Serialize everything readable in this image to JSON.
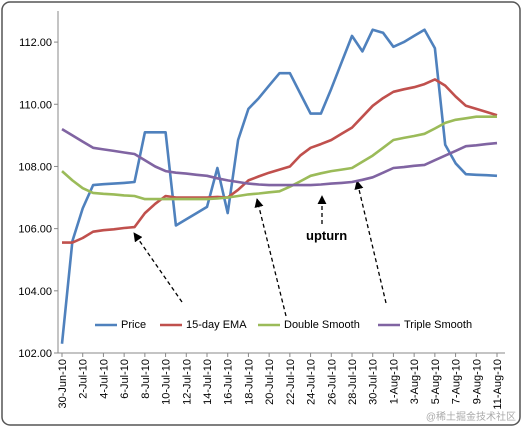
{
  "chart_data": {
    "type": "line",
    "categories": [
      "30-Jun-10",
      null,
      "2-Jul-10",
      null,
      "4-Jul-10",
      null,
      "6-Jul-10",
      null,
      "8-Jul-10",
      null,
      "10-Jul-10",
      null,
      "12-Jul-10",
      null,
      "14-Jul-10",
      null,
      "16-Jul-10",
      null,
      "18-Jul-10",
      null,
      "20-Jul-10",
      null,
      "22-Jul-10",
      null,
      "24-Jul-10",
      null,
      "26-Jul-10",
      null,
      "28-Jul-10",
      null,
      "30-Jul-10",
      null,
      "1-Aug-10",
      null,
      "3-Aug-10",
      null,
      "5-Aug-10",
      null,
      "7-Aug-10",
      null,
      "9-Aug-10",
      null,
      "11-Aug-10"
    ],
    "series": [
      {
        "name": "Price",
        "color": "#4f81bd",
        "values": [
          102.3,
          105.6,
          106.65,
          107.4,
          107.43,
          107.45,
          107.47,
          107.5,
          109.1,
          109.1,
          109.1,
          106.1,
          106.3,
          106.5,
          106.7,
          107.95,
          106.5,
          108.85,
          109.85,
          110.2,
          110.6,
          111.0,
          111.0,
          110.35,
          109.7,
          109.7,
          110.5,
          111.35,
          112.2,
          111.7,
          112.4,
          112.3,
          111.85,
          112.0,
          112.2,
          112.4,
          111.8,
          108.7,
          108.1,
          107.75,
          107.73,
          107.72,
          107.7
        ]
      },
      {
        "name": "15-day EMA",
        "color": "#c0504d",
        "values": [
          105.55,
          105.55,
          105.7,
          105.9,
          105.95,
          105.98,
          106.02,
          106.05,
          106.5,
          106.8,
          107.05,
          107.0,
          107.0,
          107.0,
          107.0,
          107.02,
          107.0,
          107.25,
          107.55,
          107.68,
          107.8,
          107.9,
          108.0,
          108.35,
          108.6,
          108.72,
          108.85,
          109.05,
          109.25,
          109.6,
          109.95,
          110.2,
          110.4,
          110.48,
          110.55,
          110.65,
          110.8,
          110.6,
          110.25,
          109.95,
          109.85,
          109.75,
          109.65
        ]
      },
      {
        "name": "Double Smooth",
        "color": "#9bbb59",
        "values": [
          107.85,
          107.55,
          107.3,
          107.15,
          107.12,
          107.1,
          107.07,
          107.05,
          106.95,
          106.95,
          106.95,
          106.95,
          106.95,
          106.95,
          106.95,
          106.97,
          107.0,
          107.05,
          107.1,
          107.13,
          107.17,
          107.2,
          107.35,
          107.52,
          107.7,
          107.78,
          107.85,
          107.9,
          107.95,
          108.15,
          108.35,
          108.6,
          108.85,
          108.92,
          108.98,
          109.05,
          109.22,
          109.4,
          109.5,
          109.55,
          109.6,
          109.6,
          109.6
        ]
      },
      {
        "name": "Triple Smooth",
        "color": "#8064a2",
        "values": [
          109.2,
          109.0,
          108.8,
          108.6,
          108.55,
          108.5,
          108.45,
          108.4,
          108.2,
          108.0,
          107.85,
          107.8,
          107.77,
          107.73,
          107.7,
          107.62,
          107.55,
          107.5,
          107.45,
          107.42,
          107.4,
          107.4,
          107.4,
          107.4,
          107.4,
          107.42,
          107.45,
          107.47,
          107.5,
          107.57,
          107.65,
          107.8,
          107.95,
          107.98,
          108.02,
          108.05,
          108.2,
          108.35,
          108.5,
          108.65,
          108.68,
          108.72,
          108.75
        ]
      }
    ],
    "ylim": [
      102,
      113
    ],
    "yticks": [
      {
        "value": 102,
        "label": "102.00"
      },
      {
        "value": 104,
        "label": "104.00"
      },
      {
        "value": 106,
        "label": "106.00"
      },
      {
        "value": 108,
        "label": "108.00"
      },
      {
        "value": 110,
        "label": "110.00"
      },
      {
        "value": 112,
        "label": "112.00"
      }
    ],
    "grid": false,
    "legend": "lower center",
    "annotations": [
      "upturn"
    ],
    "watermark": "@稀土掘金技术社区"
  }
}
